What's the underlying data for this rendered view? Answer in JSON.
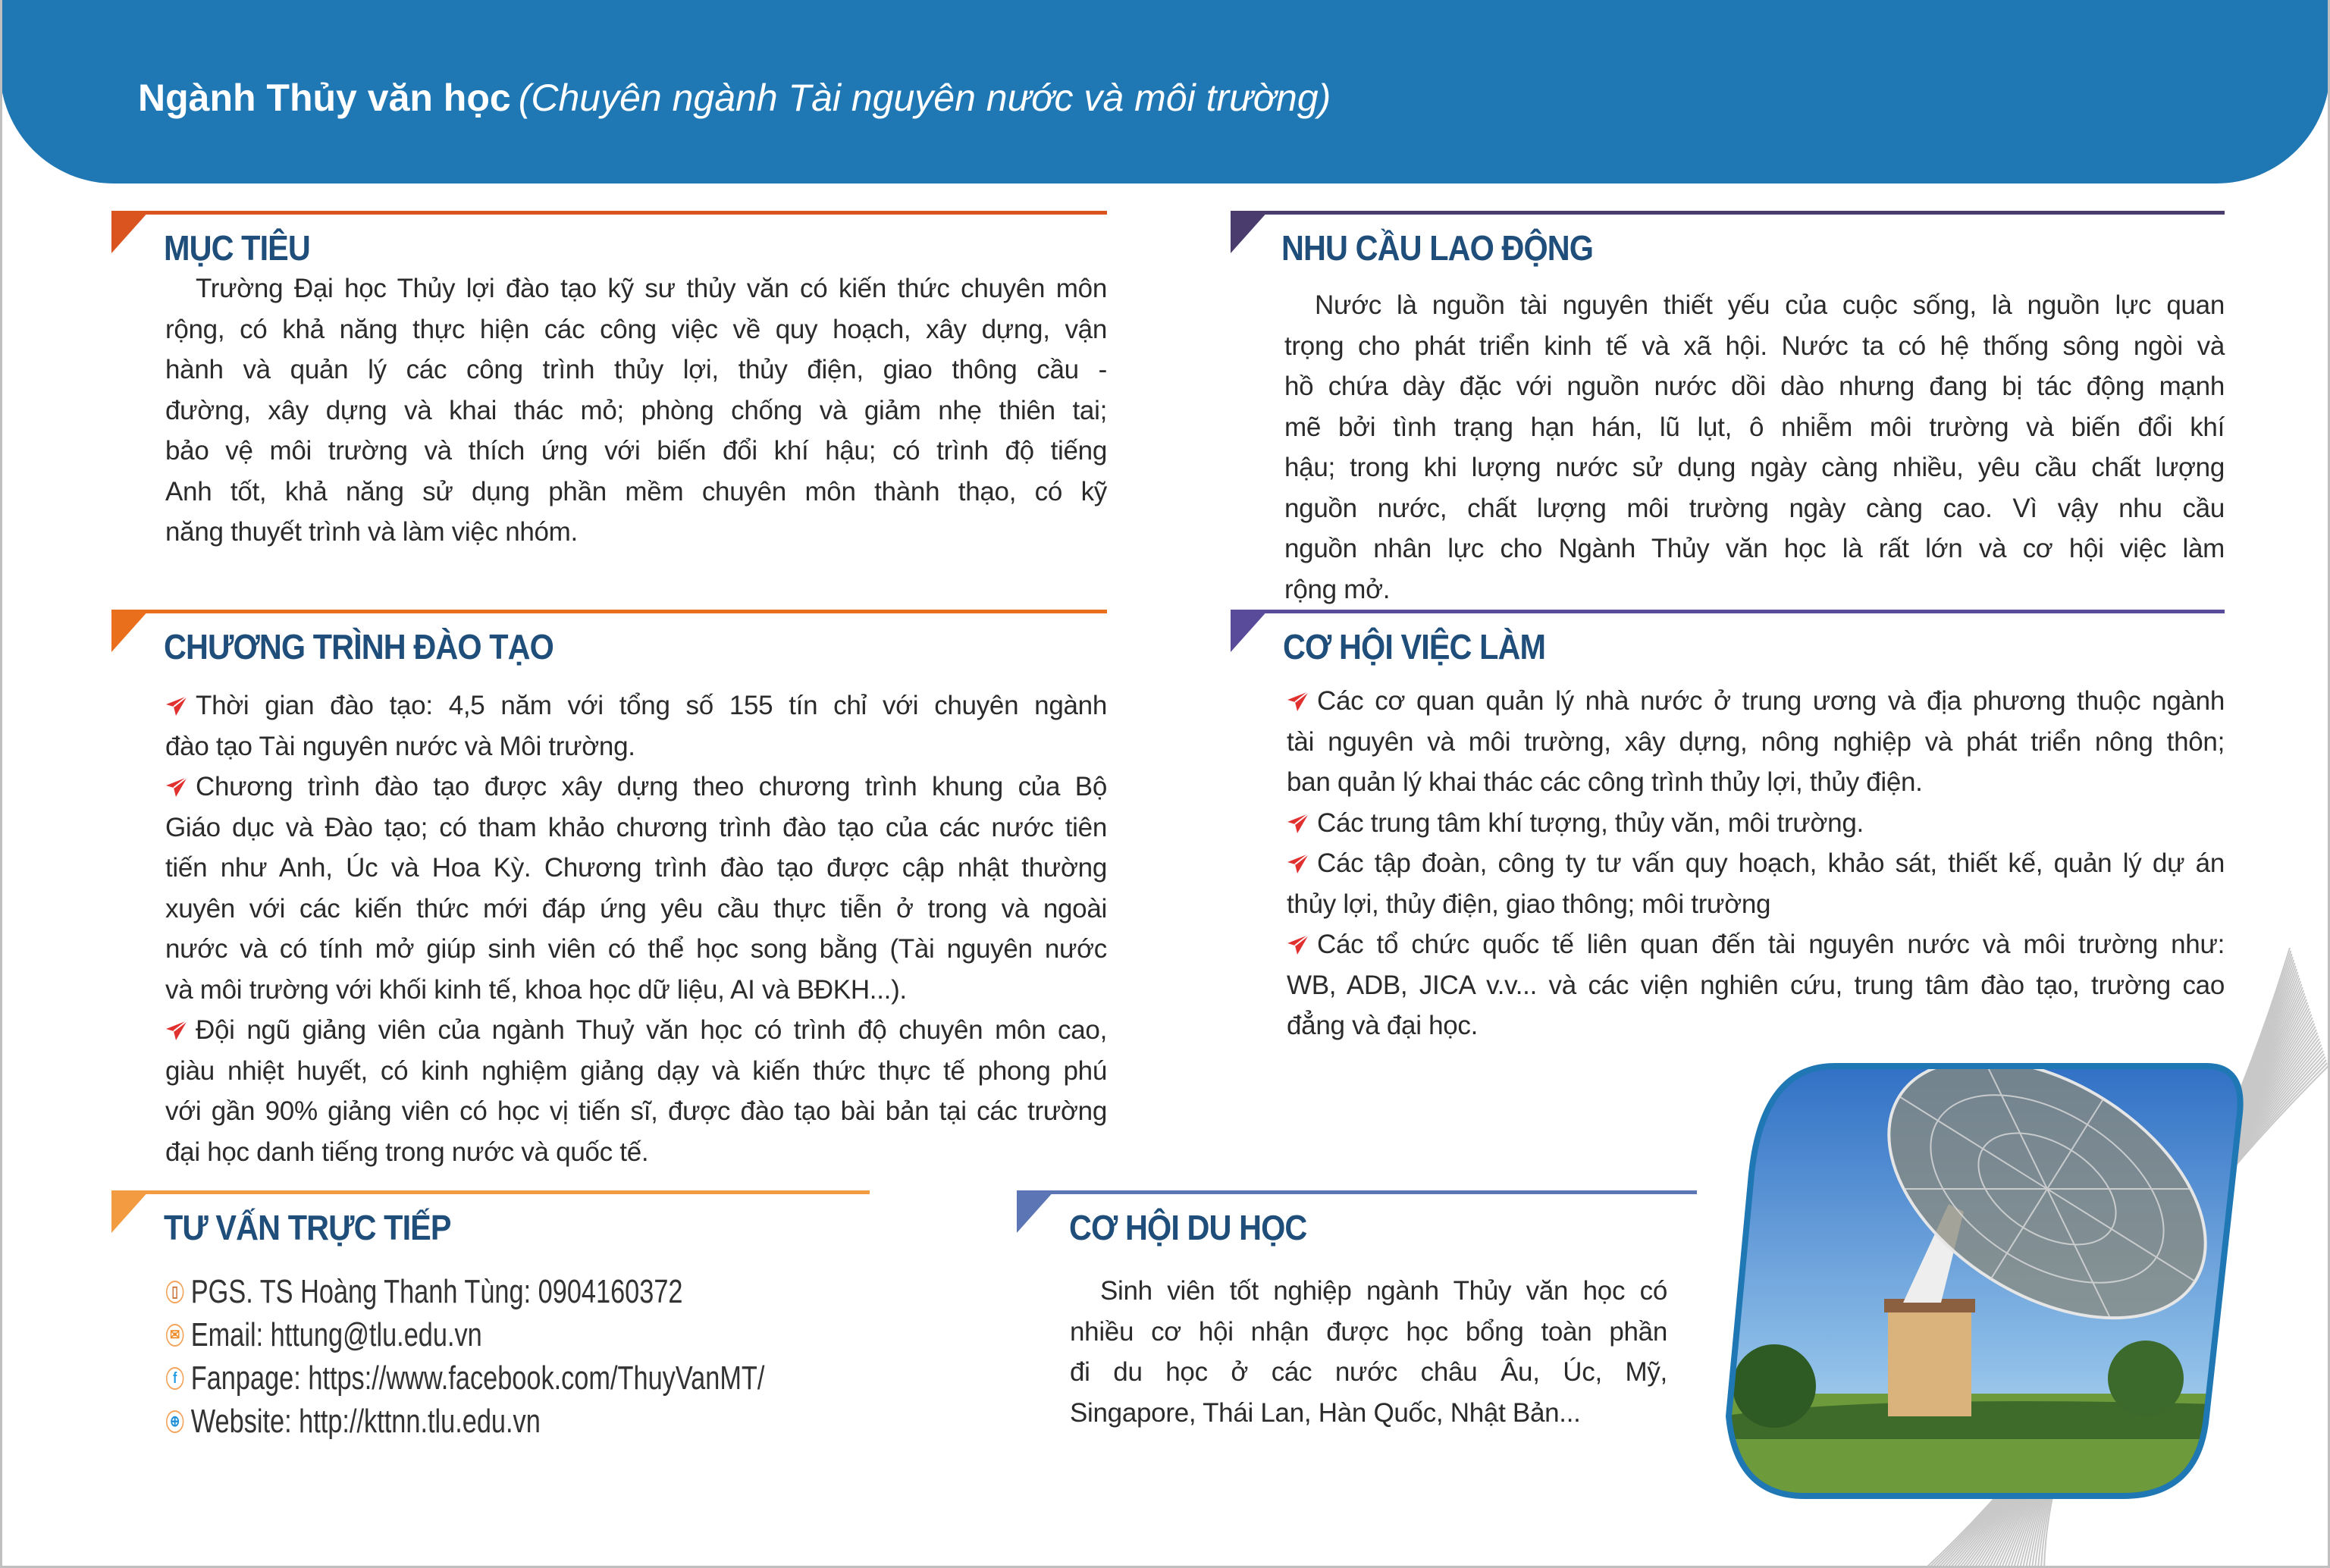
{
  "header": {
    "title_bold": "Ngành Thủy văn học",
    "title_italic": "(Chuyên ngành Tài nguyên nước và môi trường)",
    "color": "#1f77b4"
  },
  "sections": {
    "muc_tieu": {
      "title": "MỤC TIÊU",
      "accent": "#d9541e",
      "items": [
        {
          "bullet": false,
          "lines": [
            "Trường Đại học Thủy lợi đào tạo kỹ sư thủy văn có kiến thức chuyên môn",
            "rộng, có khả năng thực hiện các công việc về quy hoạch, xây dựng, vận",
            "hành và quản lý các công trình thủy lợi, thủy điện, giao thông cầu -",
            "đường, xây dựng và khai thác mỏ; phòng chống và giảm nhẹ thiên tai;",
            "bảo vệ môi trường và thích ứng với biến đổi khí hậu; có trình độ tiếng",
            "Anh tốt, khả năng sử dụng phần mềm chuyên môn thành thạo, có kỹ",
            "năng thuyết trình và làm việc nhóm."
          ]
        }
      ]
    },
    "chuong_trinh": {
      "title": "CHƯƠNG TRÌNH ĐÀO TẠO",
      "accent": "#e96f1c",
      "items": [
        {
          "bullet": true,
          "lines": [
            "Thời gian đào tạo: 4,5 năm với tổng số 155 tín chỉ với chuyên ngành",
            "đào tạo Tài nguyên nước và Môi trường."
          ]
        },
        {
          "bullet": true,
          "lines": [
            "Chương trình đào tạo được xây dựng theo chương trình khung của Bộ",
            "Giáo dục và Đào tạo; có tham khảo chương trình đào tạo của các nước tiên",
            "tiến như Anh, Úc và Hoa Kỳ.  Chương trình đào tạo được cập nhật thường",
            "xuyên với các kiến thức mới đáp ứng yêu cầu thực tiễn ở trong và ngoài",
            "nước và có tính mở giúp sinh viên có thể học song bằng (Tài nguyên nước",
            "và môi trường với khối kinh tế, khoa học dữ liệu, AI và BĐKH...)."
          ]
        },
        {
          "bullet": true,
          "lines": [
            "Đội ngũ giảng viên của ngành Thuỷ văn học có trình độ chuyên môn cao,",
            "giàu nhiệt huyết, có kinh nghiệm giảng dạy và kiến thức thực tế phong phú",
            "với gần 90% giảng viên có học vị tiến sĩ, được đào tạo bài bản tại các trường",
            "đại học danh tiếng trong nước và quốc tế."
          ]
        }
      ]
    },
    "nhu_cau": {
      "title": "NHU CẦU LAO ĐỘNG",
      "accent": "#4b3c6e",
      "items": [
        {
          "bullet": false,
          "lines": [
            "Nước là nguồn tài nguyên thiết yếu của cuộc sống, là nguồn lực quan",
            "trọng cho phát triển kinh tế và xã hội. Nước ta có hệ thống sông ngòi và",
            "hồ chứa dày đặc với nguồn nước dồi dào nhưng đang bị tác động mạnh",
            "mẽ bởi tình trạng hạn hán, lũ lụt, ô nhiễm môi trường và biến đổi khí",
            "hậu; trong khi lượng nước sử dụng ngày càng nhiều, yêu cầu chất lượng",
            "nguồn nước, chất lượng môi trường ngày càng cao. Vì vậy nhu cầu",
            "nguồn nhân lực cho Ngành Thủy văn học là rất lớn và cơ hội việc làm",
            "rộng mở."
          ]
        }
      ]
    },
    "viec_lam": {
      "title": "CƠ HỘI VIỆC LÀM",
      "accent": "#5a4a9a",
      "items": [
        {
          "bullet": true,
          "lines": [
            "Các cơ quan quản lý nhà nước ở trung ương và địa phương thuộc ngành",
            "tài nguyên và môi trường, xây dựng, nông nghiệp và phát triển nông thôn;",
            "ban quản lý khai thác các công trình thủy lợi, thủy điện."
          ]
        },
        {
          "bullet": true,
          "lines": [
            "Các trung tâm khí tượng, thủy văn, môi trường."
          ]
        },
        {
          "bullet": true,
          "lines": [
            "Các tập đoàn, công ty tư vấn quy hoạch, khảo sát, thiết kế, quản lý dự án",
            "thủy lợi, thủy điện, giao thông; môi trường"
          ]
        },
        {
          "bullet": true,
          "lines": [
            "Các tổ chức quốc tế liên quan đến tài nguyên nước và môi trường như:",
            "WB, ADB, JICA v.v... và các viện nghiên cứu, trung tâm đào tạo, trường cao",
            "đẳng và đại học."
          ]
        }
      ]
    },
    "du_hoc": {
      "title": "CƠ HỘI DU HỌC",
      "accent": "#5b75b5",
      "items": [
        {
          "bullet": false,
          "lines": [
            "Sinh viên tốt nghiệp ngành Thủy văn học có",
            "nhiều cơ hội nhận được học bổng toàn phần",
            "đi du học ở các nước châu Âu, Úc, Mỹ,",
            "Singapore, Thái Lan, Hàn Quốc, Nhật Bản..."
          ]
        }
      ]
    },
    "tu_van": {
      "title": "TƯ VẤN TRỰC TIẾP",
      "accent": "#f29b40",
      "contacts": [
        {
          "icon": "phone-icon",
          "glyph": "▯",
          "color": "#c9733a",
          "text": "PGS. TS Hoàng Thanh Tùng: 0904160372"
        },
        {
          "icon": "email-icon",
          "glyph": "✉",
          "color": "#f08a24",
          "text": "Email: httung@tlu.edu.vn"
        },
        {
          "icon": "facebook-icon",
          "glyph": "f",
          "color": "#1e9be0",
          "text": "Fanpage: https://www.facebook.com/ThuyVanMT/"
        },
        {
          "icon": "globe-icon",
          "glyph": "⊕",
          "color": "#1e8fd6",
          "text": "Website: http://kttnn.tlu.edu.vn"
        }
      ]
    }
  },
  "bullet_icon": {
    "name": "paper-plane-icon",
    "color": "#e0312f"
  },
  "title_color": "#1f4e7a"
}
